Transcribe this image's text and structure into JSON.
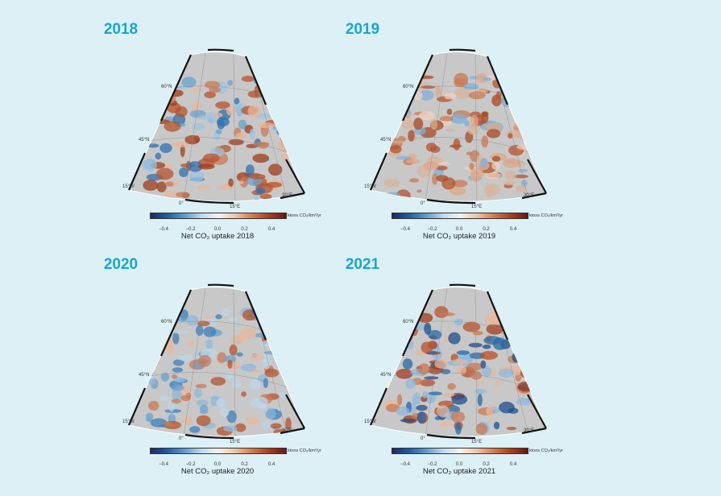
{
  "panels": [
    {
      "year_title": "2018",
      "caption": "Net CO₂ uptake 2018",
      "tendency": "mixed: red north-central, blue south"
    },
    {
      "year_title": "2019",
      "caption": "Net CO₂ uptake 2019",
      "tendency": "mostly red"
    },
    {
      "year_title": "2020",
      "caption": "Net CO₂ uptake 2020",
      "tendency": "mixed: red west, blue east"
    },
    {
      "year_title": "2021",
      "caption": "Net CO₂ uptake 2021",
      "tendency": "mixed: blue south-east, red south"
    }
  ],
  "map_labels": {
    "lat60": "60°N",
    "lat45": "45°N",
    "lon15w": "15°W",
    "lon0": "0°",
    "lon15e": "15°E",
    "lon30e": "30°E"
  },
  "colorbar": {
    "ticks": [
      "−0.4",
      "−0.2",
      "0.0",
      "0.2",
      "0.4"
    ],
    "units": "ktons CO₂/km²/yr",
    "range": [
      -0.5,
      0.5
    ],
    "colors": {
      "negative": "#1b2a5e",
      "zero": "#f5f2ee",
      "positive": "#6a1410"
    }
  },
  "colors": {
    "background": "#dcf0f6",
    "title": "#1aa6cc",
    "ocean": "#c8c8c8"
  }
}
